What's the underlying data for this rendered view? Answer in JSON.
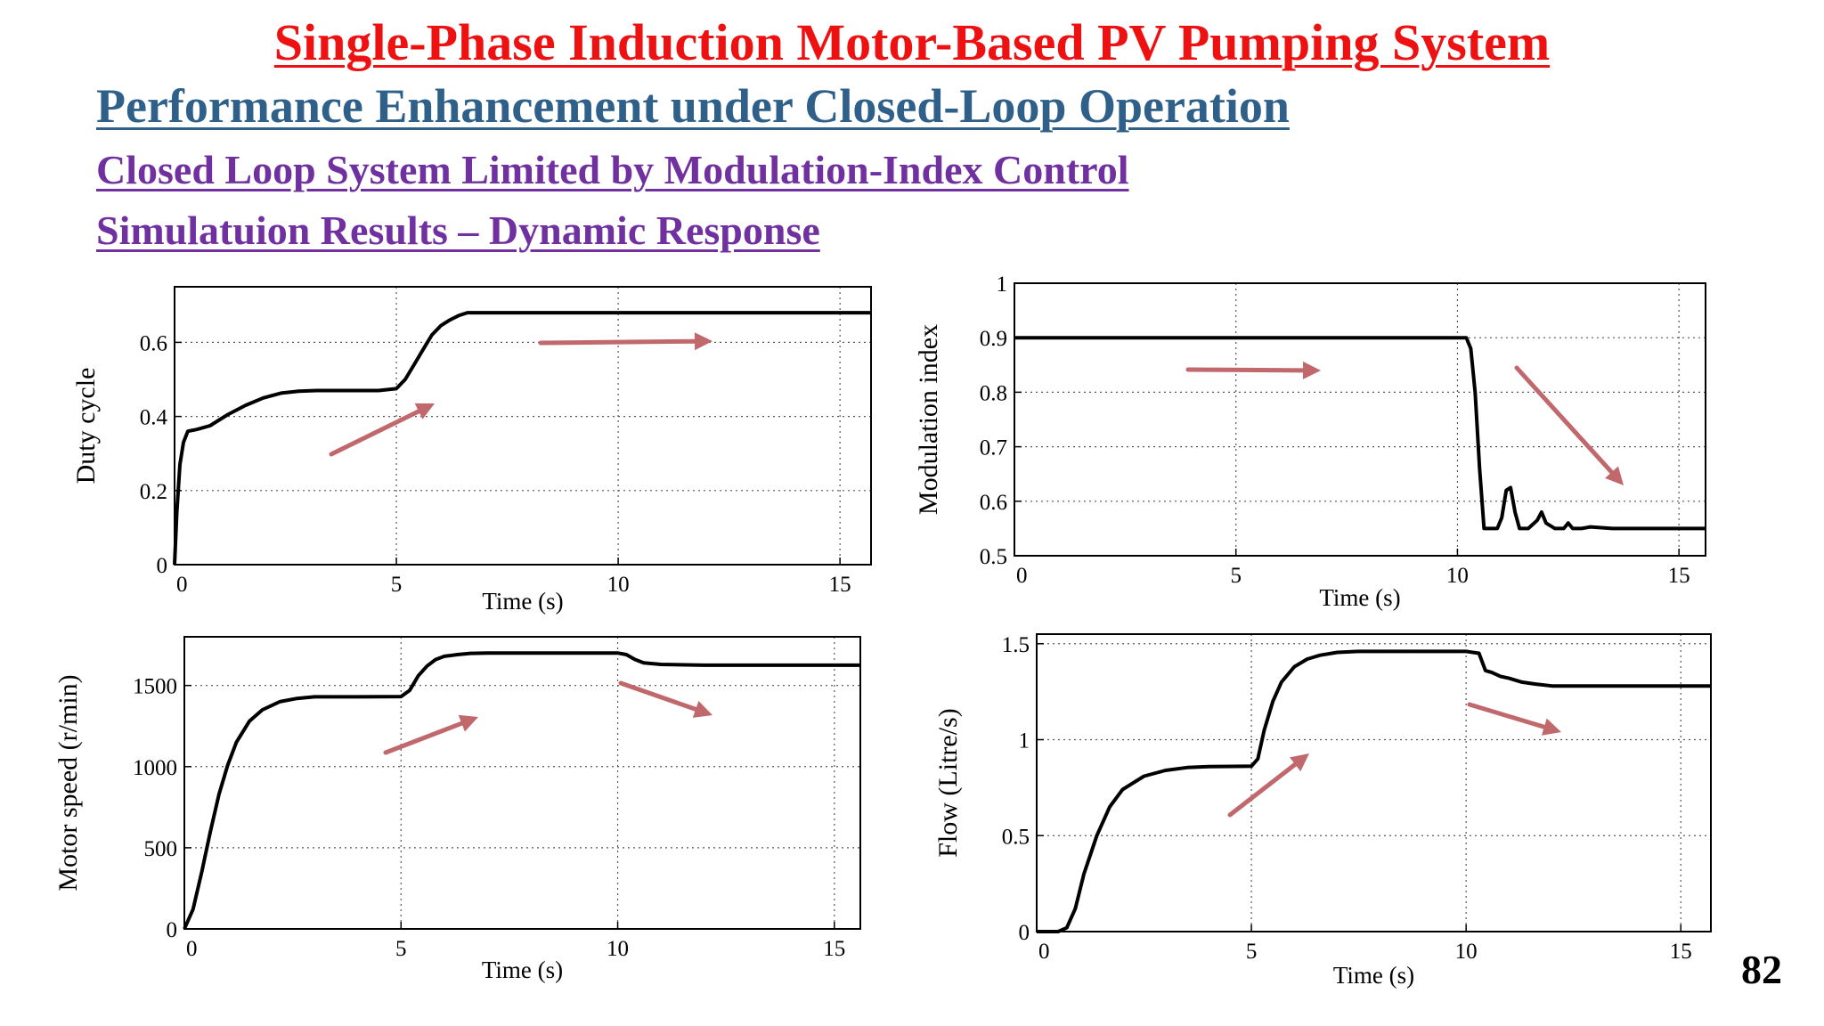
{
  "title": "Single-Phase Induction Motor-Based PV Pumping System",
  "subtitle": "Performance Enhancement under Closed-Loop Operation",
  "section": "Closed Loop System Limited by Modulation-Index Control",
  "subsection": "Simulatuion Results – Dynamic Response",
  "page_number": "82",
  "colors": {
    "title": "#ee1111",
    "subtitle": "#2e6089",
    "section": "#7030a0",
    "arrow": "#c0686b",
    "trace": "#000000"
  },
  "chart_data": [
    {
      "type": "line",
      "xlabel": "Time (s)",
      "ylabel": "Duty cycle",
      "xlim": [
        0,
        15.7
      ],
      "ylim": [
        0,
        0.75
      ],
      "xticks": [
        "0",
        "5",
        "10",
        "15"
      ],
      "yticks": [
        "0",
        "0.2",
        "0.4",
        "0.6"
      ],
      "grid": true,
      "x": [
        0,
        0.05,
        0.12,
        0.2,
        0.3,
        0.5,
        0.8,
        1.2,
        1.6,
        2.0,
        2.4,
        2.8,
        3.2,
        4.0,
        4.6,
        5.0,
        5.2,
        5.4,
        5.6,
        5.8,
        6.0,
        6.2,
        6.4,
        6.6,
        7.0,
        10.0,
        15.7
      ],
      "y": [
        0,
        0.14,
        0.27,
        0.33,
        0.36,
        0.365,
        0.375,
        0.405,
        0.43,
        0.45,
        0.463,
        0.468,
        0.47,
        0.47,
        0.47,
        0.475,
        0.5,
        0.54,
        0.58,
        0.62,
        0.645,
        0.66,
        0.672,
        0.68,
        0.68,
        0.68,
        0.68
      ]
    },
    {
      "type": "line",
      "xlabel": "Time (s)",
      "ylabel": "Modulation index",
      "xlim": [
        0,
        15.6
      ],
      "ylim": [
        0.5,
        1.0
      ],
      "xticks": [
        "0",
        "5",
        "10",
        "15"
      ],
      "yticks": [
        "0.5",
        "0.6",
        "0.7",
        "0.8",
        "0.9",
        "1"
      ],
      "grid": true,
      "x": [
        0,
        9.0,
        10.2,
        10.3,
        10.4,
        10.5,
        10.6,
        10.7,
        10.8,
        10.9,
        11.0,
        11.1,
        11.2,
        11.3,
        11.4,
        11.5,
        11.6,
        11.8,
        11.9,
        12.0,
        12.2,
        12.4,
        12.5,
        12.6,
        12.8,
        13.0,
        13.5,
        15.6
      ],
      "y": [
        0.9,
        0.9,
        0.9,
        0.88,
        0.8,
        0.66,
        0.55,
        0.55,
        0.55,
        0.55,
        0.57,
        0.62,
        0.625,
        0.58,
        0.55,
        0.55,
        0.55,
        0.565,
        0.58,
        0.56,
        0.55,
        0.55,
        0.56,
        0.55,
        0.55,
        0.553,
        0.55,
        0.55
      ]
    },
    {
      "type": "line",
      "xlabel": "Time (s)",
      "ylabel": "Motor speed (r/min)",
      "xlim": [
        0,
        15.6
      ],
      "ylim": [
        0,
        1800
      ],
      "xticks": [
        "0",
        "5",
        "10",
        "15"
      ],
      "yticks": [
        "0",
        "500",
        "1000",
        "1500"
      ],
      "grid": true,
      "x": [
        0,
        0.2,
        0.4,
        0.6,
        0.8,
        1.0,
        1.2,
        1.5,
        1.8,
        2.2,
        2.6,
        3.0,
        4.0,
        5.0,
        5.2,
        5.4,
        5.6,
        5.8,
        6.0,
        6.3,
        6.6,
        7.0,
        8.0,
        10.0,
        10.2,
        10.4,
        10.6,
        11.0,
        12.0,
        15.6
      ],
      "y": [
        0,
        120,
        350,
        600,
        830,
        1010,
        1150,
        1280,
        1350,
        1400,
        1420,
        1430,
        1430,
        1432,
        1470,
        1560,
        1620,
        1660,
        1680,
        1690,
        1698,
        1700,
        1700,
        1700,
        1690,
        1660,
        1640,
        1630,
        1625,
        1625
      ]
    },
    {
      "type": "line",
      "xlabel": "Time (s)",
      "ylabel": "Flow (Litre/s)",
      "xlim": [
        0,
        15.7
      ],
      "ylim": [
        0,
        1.55
      ],
      "xticks": [
        "0",
        "5",
        "10",
        "15"
      ],
      "yticks": [
        "0",
        "0.5",
        "1",
        "1.5"
      ],
      "grid": true,
      "x": [
        0,
        0.5,
        0.7,
        0.9,
        1.1,
        1.4,
        1.7,
        2.0,
        2.5,
        3.0,
        3.5,
        4.0,
        5.0,
        5.15,
        5.3,
        5.5,
        5.7,
        6.0,
        6.3,
        6.6,
        7.0,
        7.5,
        8.0,
        10.0,
        10.3,
        10.45,
        10.6,
        10.8,
        11.0,
        11.3,
        11.6,
        12.0,
        15.7
      ],
      "y": [
        0,
        0,
        0.02,
        0.12,
        0.3,
        0.5,
        0.65,
        0.74,
        0.81,
        0.84,
        0.855,
        0.86,
        0.862,
        0.9,
        1.05,
        1.2,
        1.3,
        1.38,
        1.42,
        1.44,
        1.455,
        1.46,
        1.46,
        1.46,
        1.45,
        1.36,
        1.35,
        1.33,
        1.32,
        1.3,
        1.29,
        1.28,
        1.28
      ]
    }
  ]
}
